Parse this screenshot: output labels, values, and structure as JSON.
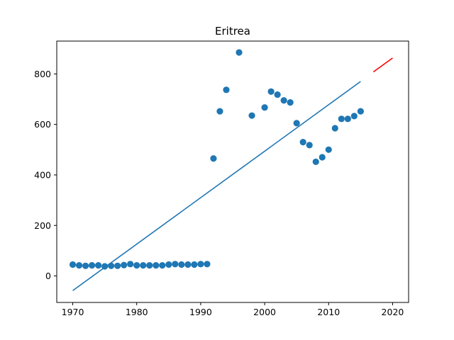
{
  "chart_data": {
    "type": "scatter",
    "title": "Eritrea",
    "xlabel": "",
    "ylabel": "",
    "xlim": [
      1967.5,
      2022.5
    ],
    "ylim": [
      -105,
      930
    ],
    "xticks": [
      1970,
      1980,
      1990,
      2000,
      2010,
      2020
    ],
    "yticks": [
      0,
      200,
      400,
      600,
      800
    ],
    "grid": false,
    "legend": "none",
    "colors": {
      "points": "#1f77b4",
      "fit": "#1f77b4",
      "forecast": "#ff0000"
    },
    "series": [
      {
        "kind": "scatter",
        "x": [
          1970,
          1971,
          1972,
          1973,
          1974,
          1975,
          1976,
          1977,
          1978,
          1979,
          1980,
          1981,
          1982,
          1983,
          1984,
          1985,
          1986,
          1987,
          1988,
          1989,
          1990,
          1991,
          1992,
          1993,
          1994,
          1996,
          1998,
          2000,
          2001,
          2002,
          2003,
          2004,
          2005,
          2006,
          2007,
          2008,
          2009,
          2010,
          2011,
          2012,
          2013,
          2014,
          2015
        ],
        "y": [
          45,
          42,
          40,
          42,
          42,
          38,
          40,
          40,
          43,
          47,
          42,
          42,
          42,
          42,
          42,
          45,
          47,
          45,
          45,
          45,
          47,
          47,
          465,
          652,
          737,
          885,
          635,
          667,
          730,
          718,
          695,
          687,
          605,
          530,
          518,
          452,
          470,
          500,
          585,
          622,
          622,
          633,
          652
        ]
      },
      {
        "kind": "line",
        "x": [
          1970,
          2015
        ],
        "y": [
          -58,
          770
        ]
      },
      {
        "kind": "line",
        "x": [
          2017,
          2020
        ],
        "y": [
          808,
          863
        ]
      }
    ]
  }
}
